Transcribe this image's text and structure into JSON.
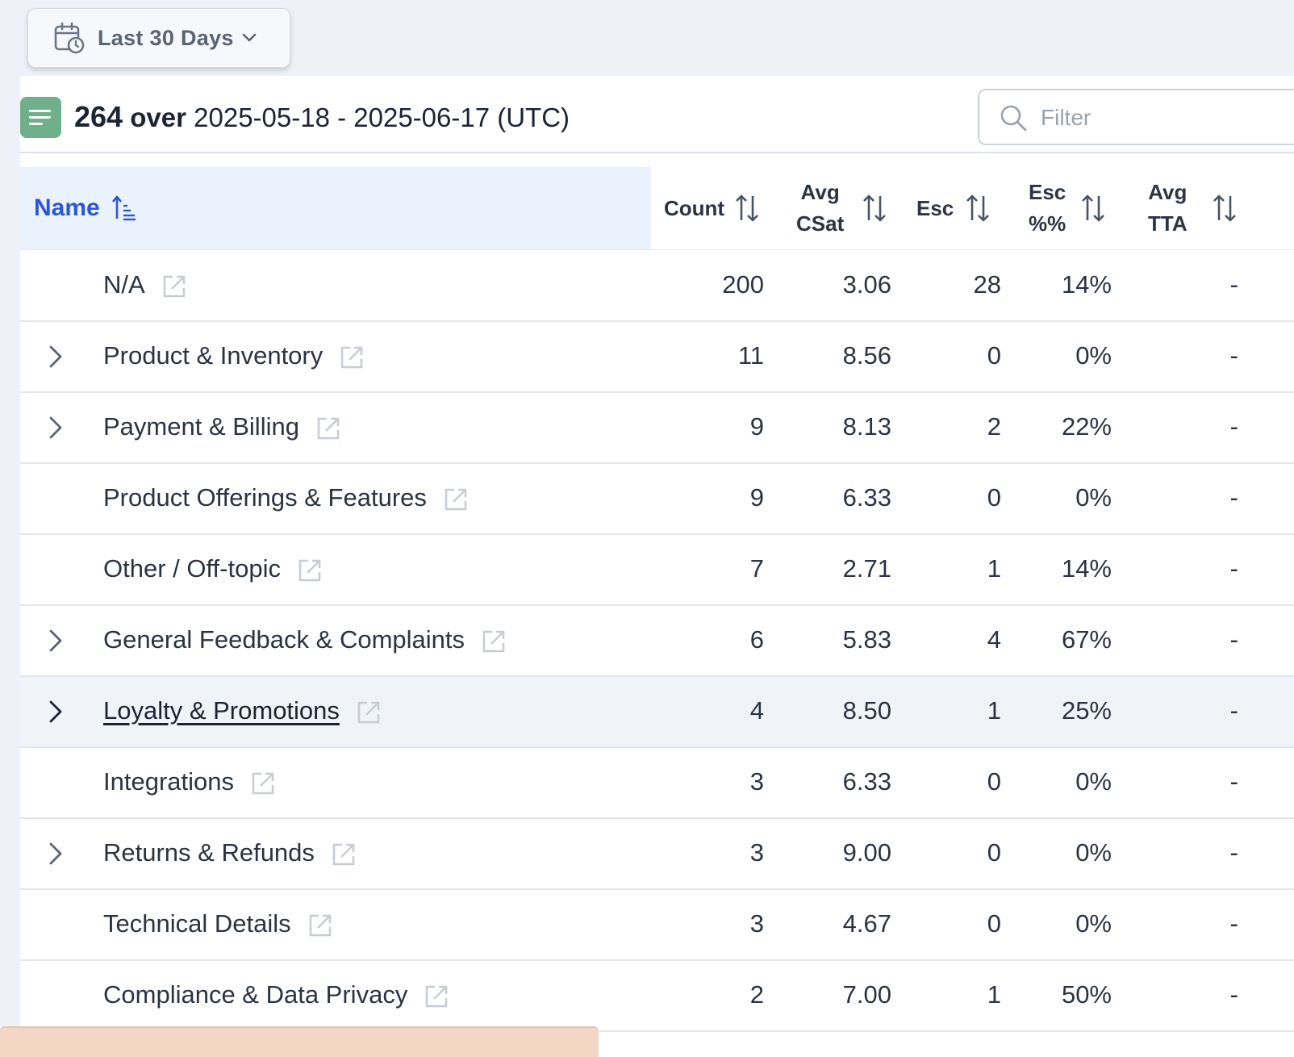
{
  "date_range_button": {
    "label": "Last 30 Days",
    "icon": "calendar-clock-icon"
  },
  "summary": {
    "count": "264",
    "connector": "over",
    "range": "2025-05-18 - 2025-06-17 (UTC)",
    "icon": "list-icon"
  },
  "filter": {
    "placeholder": "Filter",
    "value": ""
  },
  "columns": {
    "name": "Name",
    "count": "Count",
    "avg_csat_line1": "Avg",
    "avg_csat_line2": "CSat",
    "esc": "Esc",
    "esc_pct_line1": "Esc",
    "esc_pct_line2": "%%",
    "avg_tta_line1": "Avg",
    "avg_tta_line2": "TTA"
  },
  "rows": [
    {
      "name": "N/A",
      "count": "200",
      "avg_csat": "3.06",
      "esc": "28",
      "esc_pct": "14%",
      "avg_tta": "-",
      "expandable": false
    },
    {
      "name": "Product & Inventory",
      "count": "11",
      "avg_csat": "8.56",
      "esc": "0",
      "esc_pct": "0%",
      "avg_tta": "-",
      "expandable": true
    },
    {
      "name": "Payment & Billing",
      "count": "9",
      "avg_csat": "8.13",
      "esc": "2",
      "esc_pct": "22%",
      "avg_tta": "-",
      "expandable": true
    },
    {
      "name": "Product Offerings & Features",
      "count": "9",
      "avg_csat": "6.33",
      "esc": "0",
      "esc_pct": "0%",
      "avg_tta": "-",
      "expandable": false
    },
    {
      "name": "Other / Off-topic",
      "count": "7",
      "avg_csat": "2.71",
      "esc": "1",
      "esc_pct": "14%",
      "avg_tta": "-",
      "expandable": false
    },
    {
      "name": "General Feedback & Complaints",
      "count": "6",
      "avg_csat": "5.83",
      "esc": "4",
      "esc_pct": "67%",
      "avg_tta": "-",
      "expandable": true
    },
    {
      "name": "Loyalty & Promotions",
      "count": "4",
      "avg_csat": "8.50",
      "esc": "1",
      "esc_pct": "25%",
      "avg_tta": "-",
      "expandable": true,
      "hovered": true
    },
    {
      "name": "Integrations",
      "count": "3",
      "avg_csat": "6.33",
      "esc": "0",
      "esc_pct": "0%",
      "avg_tta": "-",
      "expandable": false
    },
    {
      "name": "Returns & Refunds",
      "count": "3",
      "avg_csat": "9.00",
      "esc": "0",
      "esc_pct": "0%",
      "avg_tta": "-",
      "expandable": true
    },
    {
      "name": "Technical Details",
      "count": "3",
      "avg_csat": "4.67",
      "esc": "0",
      "esc_pct": "0%",
      "avg_tta": "-",
      "expandable": false
    },
    {
      "name": "Compliance & Data Privacy",
      "count": "2",
      "avg_csat": "7.00",
      "esc": "1",
      "esc_pct": "50%",
      "avg_tta": "-",
      "expandable": false
    }
  ],
  "colors": {
    "accent": "#2c56d8",
    "header_bg": "#eaf2fd",
    "icon_green": "#6fb08a",
    "hover_row": "#f0f4f9"
  }
}
